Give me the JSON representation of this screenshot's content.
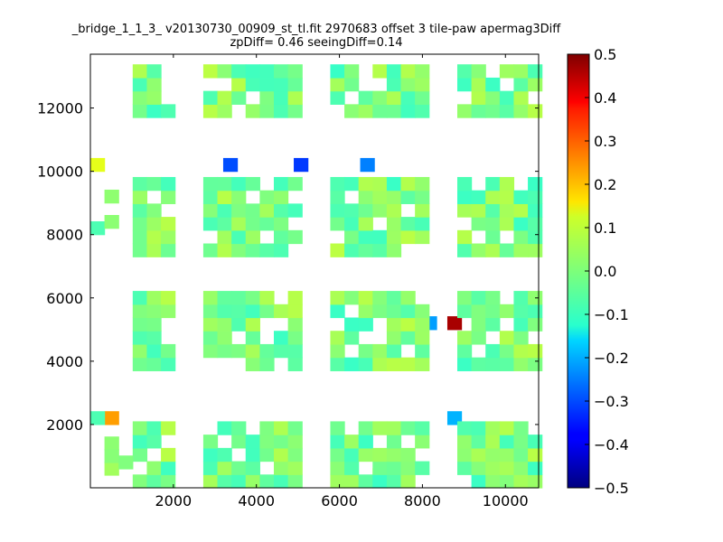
{
  "title_line1": "_bridge_1_1_3_ v20130730_00909_st_tl.fit 2970683 offset 3 tile-paw apermag3Diff",
  "title_line2": "zpDiff= 0.46 seeingDiff=0.14",
  "chart_data": {
    "type": "heatmap",
    "title": "_bridge_1_1_3_ v20130730_00909_st_tl.fit 2970683 offset 3 tile-paw apermag3Diff",
    "subtitle": "zpDiff= 0.46 seeingDiff=0.14",
    "xlabel": "",
    "ylabel": "",
    "xlim": [
      0,
      10800
    ],
    "ylim": [
      0,
      13700
    ],
    "x_ticks": [
      2000,
      4000,
      6000,
      8000,
      10000
    ],
    "y_ticks": [
      2000,
      4000,
      6000,
      8000,
      10000,
      12000
    ],
    "colormap": "jet",
    "color_range": [
      -0.5,
      0.5
    ],
    "colorbar_ticks": [
      0.5,
      0.4,
      0.3,
      0.2,
      0.1,
      0.0,
      -0.1,
      -0.2,
      -0.3,
      -0.4,
      -0.5
    ],
    "colorbar_tick_labels": [
      "0.5",
      "0.4",
      "0.3",
      "0.2",
      "0.1",
      "0.0",
      "−0.1",
      "−0.2",
      "−0.3",
      "−0.4",
      "−0.5"
    ],
    "cell_size": [
      340,
      420
    ],
    "columns_x0": [
      0,
      340,
      1020,
      1360,
      1700,
      2720,
      3060,
      3400,
      3740,
      4080,
      4420,
      4760,
      5780,
      6120,
      6460,
      6800,
      7140,
      7480,
      7820,
      8160,
      8840,
      9180,
      9520,
      9860,
      10200,
      10540
    ],
    "grid_legend": "blocks of cells in columns; values estimated from color",
    "cells": [
      {
        "x": 340,
        "y": 2000,
        "v": 0.22
      },
      {
        "x": 0,
        "y": 2000,
        "v": -0.05
      },
      {
        "x": 0,
        "y": 10000,
        "v": 0.1
      },
      {
        "x": 0,
        "y": 8000,
        "v": -0.05
      },
      {
        "x": 3200,
        "y": 10000,
        "v": -0.3
      },
      {
        "x": 4900,
        "y": 10000,
        "v": -0.32
      },
      {
        "x": 6500,
        "y": 10000,
        "v": -0.25
      },
      {
        "x": 8000,
        "y": 5000,
        "v": -0.22
      },
      {
        "x": 8600,
        "y": 5000,
        "v": 0.46
      },
      {
        "x": 8600,
        "y": 2000,
        "v": -0.2
      },
      {
        "x": 6800,
        "y": 200,
        "v": 0.14
      }
    ]
  }
}
